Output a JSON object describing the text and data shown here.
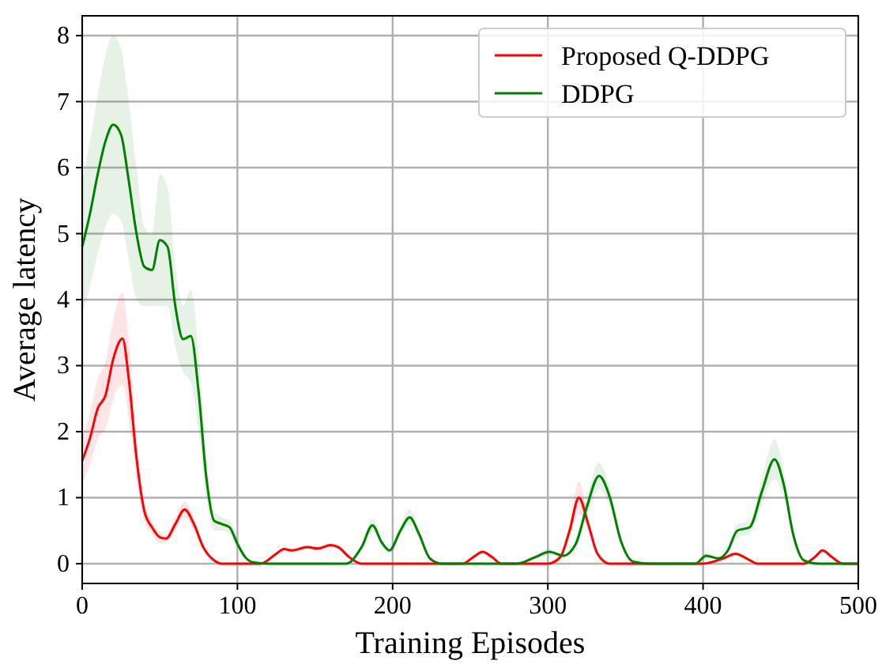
{
  "chart_data": {
    "type": "line",
    "xlabel": "Training Episodes",
    "ylabel": "Average latency",
    "xlim": [
      0,
      500
    ],
    "ylim": [
      -0.3,
      8.3
    ],
    "xticks": [
      0,
      100,
      200,
      300,
      400,
      500
    ],
    "yticks": [
      0,
      1,
      2,
      3,
      4,
      5,
      6,
      7,
      8
    ],
    "grid": true,
    "legend": "top right",
    "line_style": "solid",
    "marker": "none",
    "series": [
      {
        "name": "Proposed Q-DDPG",
        "color": "#ff0000",
        "x": [
          0,
          5,
          10,
          15,
          20,
          26,
          30,
          35,
          40,
          45,
          50,
          54,
          60,
          66,
          72,
          78,
          85,
          90,
          100,
          115,
          125,
          130,
          135,
          145,
          152,
          160,
          165,
          172,
          180,
          245,
          252,
          258,
          264,
          270,
          300,
          308,
          314,
          320,
          326,
          332,
          340,
          400,
          413,
          421,
          428,
          435,
          465,
          472,
          477,
          483,
          490,
          500
        ],
        "values": [
          1.56,
          1.9,
          2.35,
          2.55,
          3.1,
          3.41,
          2.8,
          1.6,
          0.8,
          0.55,
          0.4,
          0.38,
          0.6,
          0.82,
          0.6,
          0.25,
          0.05,
          0,
          0,
          0,
          0.15,
          0.22,
          0.2,
          0.25,
          0.23,
          0.28,
          0.25,
          0.1,
          0,
          0,
          0.1,
          0.18,
          0.1,
          0,
          0,
          0.1,
          0.5,
          1.0,
          0.6,
          0.15,
          0,
          0,
          0.08,
          0.15,
          0.08,
          0,
          0,
          0.1,
          0.2,
          0.1,
          0,
          0
        ],
        "upper": [
          1.91,
          2.3,
          2.8,
          3.05,
          3.7,
          4.11,
          3.4,
          1.9,
          0.95,
          0.65,
          0.48,
          0.43,
          0.7,
          0.94,
          0.7,
          0.3,
          0.07,
          0,
          0,
          0,
          0.18,
          0.25,
          0.23,
          0.28,
          0.26,
          0.31,
          0.28,
          0.12,
          0,
          0,
          0.12,
          0.21,
          0.12,
          0,
          0,
          0.12,
          0.6,
          1.25,
          0.7,
          0.18,
          0,
          0,
          0.1,
          0.18,
          0.1,
          0,
          0,
          0.12,
          0.23,
          0.12,
          0,
          0
        ],
        "lower": [
          1.21,
          1.5,
          1.9,
          2.05,
          2.5,
          2.71,
          2.2,
          1.3,
          0.65,
          0.45,
          0.32,
          0.33,
          0.5,
          0.7,
          0.5,
          0.2,
          0.03,
          0,
          0,
          0,
          0.12,
          0.19,
          0.17,
          0.22,
          0.2,
          0.25,
          0.22,
          0.08,
          0,
          0,
          0.08,
          0.15,
          0.08,
          0,
          0,
          0.08,
          0.4,
          0.75,
          0.5,
          0.12,
          0,
          0,
          0.06,
          0.12,
          0.06,
          0,
          0,
          0.08,
          0.17,
          0.08,
          0,
          0
        ]
      },
      {
        "name": "DDPG",
        "color": "#008000",
        "x": [
          0,
          5,
          10,
          15,
          20,
          25,
          30,
          35,
          40,
          45,
          50,
          55,
          60,
          65,
          70,
          75,
          80,
          85,
          90,
          95,
          100,
          105,
          110,
          120,
          170,
          180,
          187,
          193,
          198,
          205,
          211,
          217,
          224,
          232,
          280,
          292,
          301,
          310,
          318,
          325,
          333,
          340,
          347,
          355,
          365,
          395,
          402,
          410,
          416,
          422,
          430,
          438,
          446,
          452,
          458,
          465,
          475,
          500
        ],
        "values": [
          4.8,
          5.3,
          5.9,
          6.4,
          6.65,
          6.5,
          5.8,
          5.0,
          4.5,
          4.45,
          4.9,
          4.8,
          3.9,
          3.4,
          3.45,
          2.6,
          1.3,
          0.65,
          0.6,
          0.55,
          0.3,
          0.1,
          0.02,
          0,
          0,
          0.25,
          0.58,
          0.32,
          0.2,
          0.5,
          0.7,
          0.45,
          0.08,
          0,
          0,
          0.1,
          0.18,
          0.12,
          0.3,
          0.85,
          1.33,
          1.0,
          0.35,
          0.03,
          0,
          0,
          0.12,
          0.08,
          0.2,
          0.5,
          0.55,
          1.1,
          1.58,
          1.2,
          0.45,
          0.05,
          0,
          0
        ],
        "upper": [
          5.8,
          6.4,
          7.1,
          7.7,
          8.0,
          7.8,
          7.0,
          6.0,
          5.1,
          5.0,
          5.9,
          5.7,
          4.5,
          3.9,
          4.15,
          3.2,
          1.6,
          0.8,
          0.7,
          0.65,
          0.35,
          0.12,
          0.02,
          0,
          0,
          0.3,
          0.68,
          0.37,
          0.23,
          0.58,
          0.82,
          0.53,
          0.1,
          0,
          0,
          0.13,
          0.23,
          0.15,
          0.38,
          1.0,
          1.53,
          1.15,
          0.4,
          0.03,
          0,
          0,
          0.15,
          0.1,
          0.25,
          0.6,
          0.65,
          1.3,
          1.88,
          1.4,
          0.53,
          0.05,
          0,
          0
        ],
        "lower": [
          3.8,
          4.2,
          4.7,
          5.1,
          5.3,
          5.2,
          4.6,
          4.0,
          3.9,
          3.9,
          3.9,
          3.9,
          3.3,
          2.9,
          2.75,
          2.0,
          1.0,
          0.5,
          0.5,
          0.45,
          0.25,
          0.08,
          0.02,
          0,
          0,
          0.2,
          0.48,
          0.27,
          0.17,
          0.42,
          0.58,
          0.37,
          0.06,
          0,
          0,
          0.07,
          0.13,
          0.09,
          0.22,
          0.7,
          1.13,
          0.85,
          0.3,
          0.03,
          0,
          0,
          0.09,
          0.06,
          0.15,
          0.4,
          0.45,
          0.9,
          1.28,
          1.0,
          0.37,
          0.05,
          0,
          0
        ]
      }
    ]
  }
}
